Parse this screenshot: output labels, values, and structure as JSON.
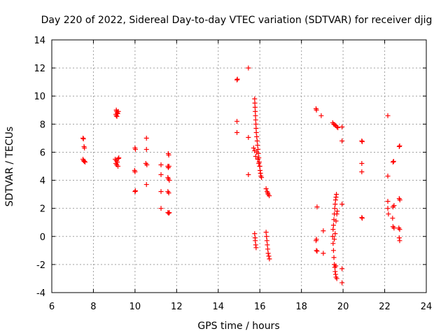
{
  "chart_data": {
    "type": "scatter",
    "title": "Day 220 of 2022, Sidereal Day-to-day VTEC variation (SDTVAR) for receiver djig",
    "xlabel": "GPS time / hours",
    "ylabel": "SDTVAR / TECUs",
    "xlim": [
      6,
      24
    ],
    "ylim": [
      -4,
      14
    ],
    "xticks": [
      "6",
      "8",
      "10",
      "12",
      "14",
      "16",
      "18",
      "20",
      "22",
      "24"
    ],
    "yticks": [
      "-4",
      "-2",
      "0",
      "2",
      "4",
      "6",
      "8",
      "10",
      "12",
      "14"
    ],
    "grid": true,
    "marker": "plus",
    "color": "#ff0000",
    "series": [
      {
        "name": "SDTVAR",
        "points": [
          [
            7.5,
            7.0
          ],
          [
            7.52,
            6.95
          ],
          [
            7.55,
            6.4
          ],
          [
            7.57,
            6.3
          ],
          [
            7.5,
            5.5
          ],
          [
            7.53,
            5.4
          ],
          [
            7.56,
            5.35
          ],
          [
            7.6,
            5.3
          ],
          [
            9.1,
            9.0
          ],
          [
            9.12,
            8.9
          ],
          [
            9.15,
            8.8
          ],
          [
            9.08,
            8.7
          ],
          [
            9.1,
            8.6
          ],
          [
            9.13,
            8.55
          ],
          [
            9.2,
            8.9
          ],
          [
            9.17,
            8.75
          ],
          [
            9.05,
            5.5
          ],
          [
            9.1,
            5.4
          ],
          [
            9.15,
            5.3
          ],
          [
            9.08,
            5.2
          ],
          [
            9.12,
            5.1
          ],
          [
            9.18,
            5.0
          ],
          [
            9.2,
            5.55
          ],
          [
            9.22,
            5.6
          ],
          [
            10.0,
            6.3
          ],
          [
            10.02,
            6.2
          ],
          [
            9.98,
            4.7
          ],
          [
            10.0,
            4.6
          ],
          [
            10.0,
            3.2
          ],
          [
            10.02,
            3.25
          ],
          [
            10.55,
            7.0
          ],
          [
            10.55,
            6.2
          ],
          [
            10.52,
            5.2
          ],
          [
            10.57,
            5.1
          ],
          [
            10.55,
            3.7
          ],
          [
            11.25,
            5.1
          ],
          [
            11.25,
            4.4
          ],
          [
            11.25,
            3.2
          ],
          [
            11.25,
            2.0
          ],
          [
            11.6,
            5.9
          ],
          [
            11.62,
            5.8
          ],
          [
            11.58,
            5.0
          ],
          [
            11.6,
            4.9
          ],
          [
            11.63,
            5.0
          ],
          [
            11.58,
            4.2
          ],
          [
            11.6,
            4.1
          ],
          [
            11.65,
            4.0
          ],
          [
            11.58,
            3.2
          ],
          [
            11.62,
            3.1
          ],
          [
            11.58,
            1.7
          ],
          [
            11.62,
            1.65
          ],
          [
            11.65,
            1.7
          ],
          [
            14.9,
            11.15
          ],
          [
            14.92,
            11.2
          ],
          [
            14.9,
            8.2
          ],
          [
            14.9,
            7.4
          ],
          [
            15.45,
            12.0
          ],
          [
            15.45,
            7.05
          ],
          [
            15.45,
            4.4
          ],
          [
            15.75,
            9.8
          ],
          [
            15.76,
            9.5
          ],
          [
            15.77,
            9.2
          ],
          [
            15.78,
            8.9
          ],
          [
            15.79,
            8.6
          ],
          [
            15.8,
            8.3
          ],
          [
            15.81,
            8.0
          ],
          [
            15.82,
            7.7
          ],
          [
            15.83,
            7.4
          ],
          [
            15.85,
            7.1
          ],
          [
            15.87,
            6.8
          ],
          [
            15.89,
            6.5
          ],
          [
            15.91,
            6.2
          ],
          [
            15.93,
            5.9
          ],
          [
            15.95,
            5.6
          ],
          [
            15.97,
            5.3
          ],
          [
            15.99,
            5.0
          ],
          [
            16.01,
            4.7
          ],
          [
            16.03,
            4.5
          ],
          [
            16.05,
            4.3
          ],
          [
            16.08,
            4.2
          ],
          [
            15.7,
            6.3
          ],
          [
            15.75,
            6.1
          ],
          [
            15.8,
            5.7
          ],
          [
            15.9,
            5.5
          ],
          [
            16.0,
            5.0
          ],
          [
            15.85,
            6.0
          ],
          [
            15.95,
            5.2
          ],
          [
            15.75,
            0.2
          ],
          [
            15.77,
            -0.1
          ],
          [
            15.78,
            -0.3
          ],
          [
            15.8,
            -0.6
          ],
          [
            15.82,
            -0.8
          ],
          [
            16.3,
            3.4
          ],
          [
            16.35,
            3.2
          ],
          [
            16.4,
            3.0
          ],
          [
            16.45,
            2.9
          ],
          [
            16.38,
            3.1
          ],
          [
            16.3,
            0.3
          ],
          [
            16.32,
            0.0
          ],
          [
            16.34,
            -0.3
          ],
          [
            16.36,
            -0.6
          ],
          [
            16.38,
            -0.9
          ],
          [
            16.4,
            -1.2
          ],
          [
            16.43,
            -1.4
          ],
          [
            16.46,
            -1.6
          ],
          [
            18.7,
            9.1
          ],
          [
            18.72,
            9.0
          ],
          [
            18.95,
            8.6
          ],
          [
            18.75,
            2.1
          ],
          [
            18.72,
            -0.2
          ],
          [
            18.7,
            -0.3
          ],
          [
            18.72,
            -1.0
          ],
          [
            18.75,
            -1.05
          ],
          [
            19.05,
            0.4
          ],
          [
            19.05,
            -1.2
          ],
          [
            19.5,
            8.1
          ],
          [
            19.55,
            8.0
          ],
          [
            19.6,
            7.95
          ],
          [
            19.65,
            7.9
          ],
          [
            19.7,
            7.8
          ],
          [
            19.75,
            7.75
          ],
          [
            19.95,
            7.8
          ],
          [
            19.95,
            6.8
          ],
          [
            19.5,
            0.0
          ],
          [
            19.52,
            0.5
          ],
          [
            19.54,
            0.8
          ],
          [
            19.56,
            1.2
          ],
          [
            19.58,
            1.6
          ],
          [
            19.6,
            2.0
          ],
          [
            19.62,
            2.3
          ],
          [
            19.64,
            2.6
          ],
          [
            19.66,
            2.8
          ],
          [
            19.68,
            3.0
          ],
          [
            19.52,
            -0.5
          ],
          [
            19.54,
            -1.0
          ],
          [
            19.56,
            -1.5
          ],
          [
            19.58,
            -2.0
          ],
          [
            19.6,
            -2.2
          ],
          [
            19.62,
            -2.5
          ],
          [
            19.64,
            -2.7
          ],
          [
            19.66,
            -2.9
          ],
          [
            19.7,
            -3.0
          ],
          [
            19.58,
            -0.2
          ],
          [
            19.62,
            0.2
          ],
          [
            19.66,
            1.1
          ],
          [
            19.7,
            1.6
          ],
          [
            19.72,
            1.8
          ],
          [
            19.95,
            2.3
          ],
          [
            19.95,
            -2.3
          ],
          [
            19.95,
            -3.3
          ],
          [
            19.65,
            -2.1
          ],
          [
            20.9,
            6.8
          ],
          [
            20.92,
            6.75
          ],
          [
            20.9,
            5.2
          ],
          [
            20.9,
            4.6
          ],
          [
            20.9,
            1.35
          ],
          [
            20.92,
            1.3
          ],
          [
            22.15,
            8.6
          ],
          [
            22.15,
            4.3
          ],
          [
            22.15,
            2.5
          ],
          [
            22.15,
            2.0
          ],
          [
            22.18,
            1.6
          ],
          [
            22.4,
            5.3
          ],
          [
            22.43,
            5.35
          ],
          [
            22.4,
            2.1
          ],
          [
            22.45,
            2.2
          ],
          [
            22.38,
            1.3
          ],
          [
            22.4,
            0.7
          ],
          [
            22.45,
            0.6
          ],
          [
            22.7,
            6.4
          ],
          [
            22.72,
            6.45
          ],
          [
            22.7,
            2.7
          ],
          [
            22.73,
            2.6
          ],
          [
            22.68,
            0.6
          ],
          [
            22.72,
            0.5
          ],
          [
            22.7,
            -0.1
          ],
          [
            22.72,
            -0.3
          ]
        ]
      }
    ]
  }
}
